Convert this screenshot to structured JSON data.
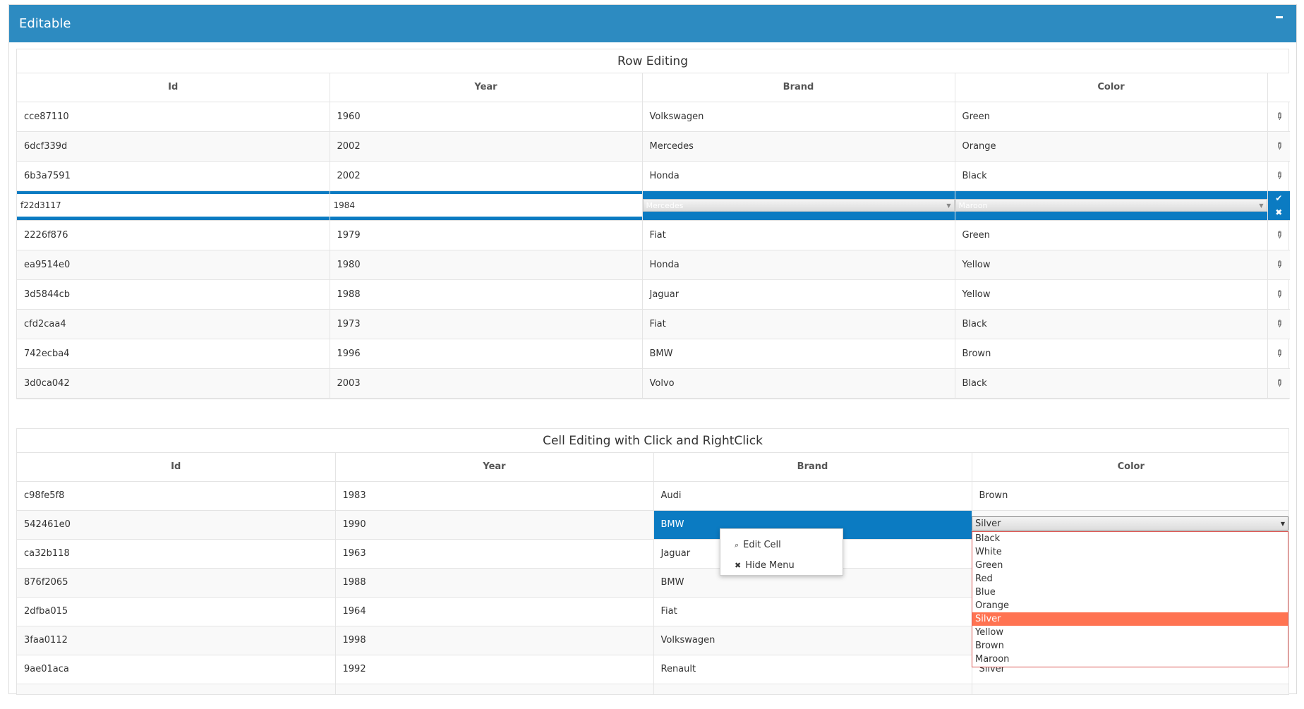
{
  "panel": {
    "title": "Editable"
  },
  "row_editing": {
    "caption": "Row Editing",
    "columns": [
      "Id",
      "Year",
      "Brand",
      "Color"
    ],
    "rows": [
      [
        "cce87110",
        "1960",
        "Volkswagen",
        "Green"
      ],
      [
        "6dcf339d",
        "2002",
        "Mercedes",
        "Orange"
      ],
      [
        "6b3a7591",
        "2002",
        "Honda",
        "Black"
      ],
      [
        "f22d3117",
        "1984",
        "Mercedes",
        "Maroon"
      ],
      [
        "2226f876",
        "1979",
        "Fiat",
        "Green"
      ],
      [
        "ea9514e0",
        "1980",
        "Honda",
        "Yellow"
      ],
      [
        "3d5844cb",
        "1988",
        "Jaguar",
        "Yellow"
      ],
      [
        "cfd2caa4",
        "1973",
        "Fiat",
        "Black"
      ],
      [
        "742ecba4",
        "1996",
        "BMW",
        "Brown"
      ],
      [
        "3d0ca042",
        "2003",
        "Volvo",
        "Black"
      ]
    ]
  },
  "cell_editing": {
    "caption": "Cell Editing with Click and RightClick",
    "columns": [
      "Id",
      "Year",
      "Brand",
      "Color"
    ],
    "rows": [
      [
        "c98fe5f8",
        "1983",
        "Audi",
        "Brown"
      ],
      [
        "542461e0",
        "1990",
        "BMW",
        ""
      ],
      [
        "ca32b118",
        "1963",
        "Jaguar",
        ""
      ],
      [
        "876f2065",
        "1988",
        "BMW",
        ""
      ],
      [
        "2dfba015",
        "1964",
        "Fiat",
        ""
      ],
      [
        "3faa0112",
        "1998",
        "Volkswagen",
        ""
      ],
      [
        "9ae01aca",
        "1992",
        "Renault",
        "Silver"
      ]
    ],
    "color_select": {
      "value": "Silver",
      "options": [
        "Black",
        "White",
        "Green",
        "Red",
        "Blue",
        "Orange",
        "Silver",
        "Yellow",
        "Brown",
        "Maroon"
      ]
    }
  },
  "context_menu": {
    "edit_label": "Edit Cell",
    "hide_label": "Hide Menu"
  },
  "colors": {
    "header": "#2d8bc1",
    "selection": "#0b7bc2",
    "highlight": "#ff7352"
  },
  "icons": {
    "edit": "pencil-icon",
    "save": "check-icon",
    "cancel": "close-icon",
    "collapse": "minus-icon",
    "search": "search-icon"
  }
}
